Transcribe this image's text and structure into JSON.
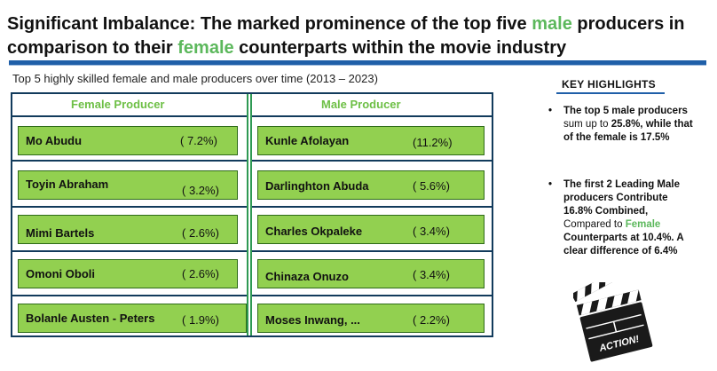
{
  "title": {
    "part1": "Significant Imbalance: The marked prominence of the top five ",
    "male": "male",
    "part2": " producers in comparison to their ",
    "female": "female",
    "part3": " counterparts within the movie industry"
  },
  "subtitle": "Top 5 highly skilled female and male producers over time (2013 – 2023)",
  "table": {
    "female_header": "Female Producer",
    "male_header": "Male Producer",
    "female": [
      {
        "name": "Mo Abudu",
        "pct": "( 7.2%)"
      },
      {
        "name": "Toyin Abraham",
        "pct": "( 3.2%)"
      },
      {
        "name": "Mimi Bartels",
        "pct": "( 2.6%)"
      },
      {
        "name": "Omoni Oboli",
        "pct": "( 2.6%)"
      },
      {
        "name": "Bolanle Austen - Peters",
        "pct": "( 1.9%)"
      }
    ],
    "male": [
      {
        "name": "Kunle Afolayan",
        "pct": "(11.2%)"
      },
      {
        "name": "Darlinghton Abuda",
        "pct": "( 5.6%)"
      },
      {
        "name": "Charles Okpaleke",
        "pct": "( 3.4%)"
      },
      {
        "name": "Chinaza Onuzo",
        "pct": "( 3.4%)"
      },
      {
        "name": "Moses Inwang, ...",
        "pct": "( 2.2%)"
      }
    ]
  },
  "highlights": {
    "title": "KEY HIGHLIGHTS",
    "bullet1": {
      "bold": "The top 5 male producers",
      "normal": " sum up to",
      "rest": " 25.8%, while that of the female is 17.5%"
    },
    "bullet2": {
      "bold": "The first 2 Leading Male producers Contribute 16.8% Combined,",
      "normal": " Compared to ",
      "green": "Female",
      "rest": " Counterparts at 10.4%. A clear difference of 6.4%"
    }
  },
  "clapper": {
    "label": "ACTION!"
  },
  "colors": {
    "accent_green": "#5cb85c",
    "card_green": "#92d050",
    "navy": "#123b5c",
    "blue_bar": "#1f5fa8"
  }
}
